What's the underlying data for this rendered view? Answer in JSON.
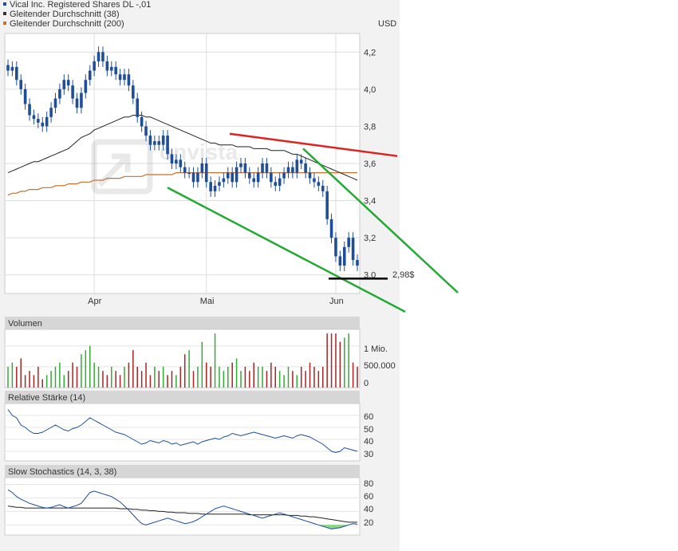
{
  "legend": [
    {
      "label": "Vical Inc. Registered Shares DL -,01",
      "color": "#1f4e99"
    },
    {
      "label": "Gleitender Durchschnitt (38)",
      "color": "#333333"
    },
    {
      "label": "Gleitender Durchschnitt (200)",
      "color": "#c8702c"
    }
  ],
  "currency": "USD",
  "watermark": "onvista",
  "colors": {
    "candle": "#1f4e99",
    "ma38": "#222222",
    "ma200": "#c8702c",
    "resistance": "#dd2222",
    "channel": "#22aa33",
    "support": "#000000",
    "vol_up": "#33aa33",
    "vol_down": "#aa2222",
    "indicator": "#1f4e99"
  },
  "price_ticks": [
    "4,2",
    "4,0",
    "3,8",
    "3,6",
    "3,4",
    "3,2",
    "3,0"
  ],
  "month_labels": [
    "Apr",
    "Mai",
    "Jun"
  ],
  "support_label": "2,98$",
  "volume_panel": {
    "title": "Volumen",
    "ticks": [
      "1 Mio.",
      "500.000",
      "0"
    ]
  },
  "rsi_panel": {
    "title": "Relative Stärke (14)",
    "ticks": [
      "60",
      "50",
      "40",
      "30"
    ]
  },
  "stoch_panel": {
    "title": "Slow Stochastics (14, 3, 38)",
    "ticks": [
      "80",
      "60",
      "40",
      "20"
    ]
  },
  "chart_data": {
    "type": "candlestick",
    "series": [
      {
        "name": "Vical Inc. Registered Shares DL -,01",
        "close": [
          4.1,
          4.12,
          4.05,
          4.0,
          3.92,
          3.86,
          3.84,
          3.82,
          3.8,
          3.85,
          3.9,
          3.95,
          4.0,
          4.05,
          4.02,
          3.95,
          3.9,
          3.98,
          4.05,
          4.1,
          4.15,
          4.2,
          4.15,
          4.1,
          4.12,
          4.08,
          4.05,
          4.08,
          4.02,
          3.95,
          3.85,
          3.8,
          3.75,
          3.7,
          3.72,
          3.7,
          3.75,
          3.65,
          3.6,
          3.62,
          3.58,
          3.55,
          3.55,
          3.5,
          3.55,
          3.6,
          3.5,
          3.45,
          3.48,
          3.5,
          3.52,
          3.55,
          3.5,
          3.58,
          3.6,
          3.55,
          3.52,
          3.5,
          3.55,
          3.6,
          3.55,
          3.5,
          3.48,
          3.52,
          3.55,
          3.58,
          3.55,
          3.62,
          3.6,
          3.55,
          3.52,
          3.5,
          3.48,
          3.45,
          3.3,
          3.2,
          3.1,
          3.05,
          3.15,
          3.2,
          3.08,
          3.05
        ]
      },
      {
        "name": "Gleitender Durchschnitt (38)",
        "values": [
          3.55,
          3.56,
          3.57,
          3.58,
          3.59,
          3.6,
          3.61,
          3.61,
          3.62,
          3.63,
          3.64,
          3.65,
          3.66,
          3.67,
          3.68,
          3.7,
          3.72,
          3.74,
          3.75,
          3.76,
          3.78,
          3.79,
          3.8,
          3.81,
          3.82,
          3.83,
          3.84,
          3.85,
          3.85,
          3.86,
          3.86,
          3.86,
          3.85,
          3.85,
          3.84,
          3.83,
          3.82,
          3.81,
          3.8,
          3.79,
          3.78,
          3.77,
          3.76,
          3.75,
          3.74,
          3.73,
          3.72,
          3.71,
          3.71,
          3.7,
          3.7,
          3.7,
          3.7,
          3.69,
          3.69,
          3.69,
          3.69,
          3.68,
          3.68,
          3.68,
          3.68,
          3.67,
          3.67,
          3.67,
          3.67,
          3.66,
          3.65,
          3.65,
          3.64,
          3.63,
          3.62,
          3.61,
          3.6,
          3.59,
          3.58,
          3.57,
          3.56,
          3.55,
          3.54,
          3.53,
          3.52,
          3.51
        ]
      },
      {
        "name": "Gleitender Durchschnitt (200)",
        "values": [
          3.43,
          3.44,
          3.44,
          3.45,
          3.45,
          3.46,
          3.46,
          3.46,
          3.47,
          3.47,
          3.47,
          3.48,
          3.48,
          3.48,
          3.49,
          3.49,
          3.49,
          3.5,
          3.5,
          3.5,
          3.51,
          3.51,
          3.51,
          3.52,
          3.52,
          3.52,
          3.52,
          3.53,
          3.53,
          3.53,
          3.53,
          3.53,
          3.54,
          3.54,
          3.54,
          3.54,
          3.54,
          3.54,
          3.54,
          3.55,
          3.55,
          3.55,
          3.55,
          3.55,
          3.55,
          3.55,
          3.55,
          3.55,
          3.55,
          3.55,
          3.55,
          3.55,
          3.55,
          3.55,
          3.55,
          3.55,
          3.55,
          3.55,
          3.55,
          3.55,
          3.55,
          3.55,
          3.55,
          3.55,
          3.55,
          3.55,
          3.55,
          3.55,
          3.55,
          3.55,
          3.55,
          3.55,
          3.55,
          3.55,
          3.55,
          3.55,
          3.55,
          3.55,
          3.55,
          3.55,
          3.55,
          3.55
        ]
      }
    ],
    "volume": [
      0.5,
      0.6,
      0.5,
      0.7,
      0.3,
      0.4,
      0.3,
      0.5,
      0.2,
      0.3,
      0.4,
      0.5,
      0.6,
      0.3,
      0.4,
      0.6,
      0.5,
      0.8,
      0.9,
      1.0,
      0.6,
      0.5,
      0.4,
      0.3,
      0.5,
      0.4,
      0.3,
      0.5,
      0.6,
      0.9,
      0.5,
      0.4,
      0.6,
      0.3,
      0.5,
      0.4,
      0.5,
      0.3,
      0.4,
      0.3,
      0.5,
      0.8,
      0.9,
      0.4,
      0.5,
      1.1,
      0.6,
      0.5,
      1.3,
      0.5,
      0.4,
      0.5,
      0.6,
      0.7,
      0.4,
      0.5,
      0.4,
      0.6,
      0.5,
      0.5,
      0.4,
      0.6,
      0.5,
      0.4,
      0.3,
      0.5,
      0.4,
      0.3,
      0.5,
      0.4,
      0.6,
      0.5,
      0.4,
      0.5,
      1.3,
      1.3,
      1.3,
      1.1,
      1.2,
      1.3,
      0.6,
      0.5
    ],
    "rsi": [
      65,
      60,
      58,
      52,
      50,
      47,
      45,
      45,
      46,
      48,
      50,
      52,
      50,
      48,
      47,
      49,
      50,
      52,
      55,
      58,
      56,
      54,
      52,
      50,
      48,
      46,
      45,
      44,
      42,
      40,
      38,
      36,
      37,
      39,
      38,
      37,
      39,
      38,
      36,
      37,
      35,
      36,
      37,
      38,
      36,
      38,
      39,
      40,
      41,
      40,
      42,
      43,
      45,
      44,
      43,
      44,
      45,
      46,
      45,
      44,
      43,
      42,
      41,
      42,
      43,
      42,
      41,
      43,
      44,
      43,
      42,
      40,
      38,
      36,
      33,
      30,
      29,
      30,
      33,
      32,
      31,
      30
    ],
    "stochastics": [
      72,
      68,
      62,
      58,
      55,
      52,
      50,
      48,
      46,
      45,
      46,
      48,
      50,
      47,
      45,
      47,
      49,
      52,
      60,
      68,
      70,
      68,
      66,
      64,
      62,
      58,
      54,
      48,
      42,
      35,
      28,
      22,
      20,
      22,
      24,
      26,
      28,
      30,
      28,
      26,
      24,
      22,
      23,
      25,
      28,
      32,
      36,
      40,
      44,
      46,
      48,
      46,
      44,
      42,
      40,
      38,
      36,
      34,
      32,
      30,
      32,
      34,
      36,
      38,
      36,
      34,
      32,
      30,
      28,
      26,
      24,
      22,
      20,
      18,
      16,
      14,
      15,
      16,
      18,
      20,
      22,
      21
    ],
    "stoch_signal": [
      48,
      47,
      46,
      46,
      45,
      45,
      45,
      45,
      45,
      45,
      45,
      45,
      45,
      45,
      45,
      45,
      45,
      45,
      45,
      45,
      45,
      45,
      45,
      45,
      45,
      45,
      44,
      44,
      44,
      43,
      43,
      42,
      42,
      41,
      41,
      40,
      40,
      39,
      39,
      38,
      38,
      38,
      37,
      37,
      37,
      36,
      36,
      36,
      36,
      36,
      36,
      36,
      36,
      36,
      36,
      36,
      35,
      35,
      35,
      35,
      35,
      35,
      35,
      35,
      35,
      34,
      34,
      34,
      33,
      33,
      32,
      32,
      31,
      30,
      29,
      28,
      27,
      26,
      25,
      24,
      24,
      24
    ],
    "price_ylim": [
      2.9,
      4.3
    ],
    "volume_ylim": [
      0,
      1.4
    ],
    "rsi_ylim": [
      22,
      70
    ],
    "stoch_ylim": [
      5,
      90
    ],
    "trendlines": [
      {
        "name": "resistance",
        "from": [
          3.76
        ],
        "to": [
          3.64
        ]
      },
      {
        "name": "upper-channel",
        "from": [
          3.68
        ],
        "to": [
          2.85
        ]
      },
      {
        "name": "lower-channel",
        "from": [
          3.47
        ],
        "to": [
          2.8
        ]
      },
      {
        "name": "support",
        "value": 2.98
      }
    ]
  }
}
